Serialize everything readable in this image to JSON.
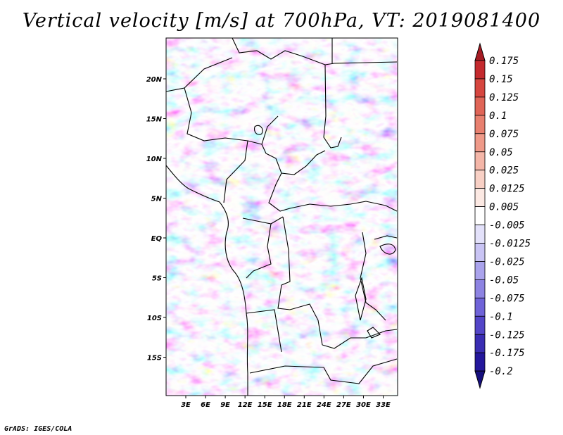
{
  "title": "Vertical velocity [m/s] at 700hPa, VT: 2019081400",
  "credit": "GrADS: IGES/COLA",
  "map": {
    "lat_labels": [
      {
        "label": "20N",
        "lat": 20
      },
      {
        "label": "15N",
        "lat": 15
      },
      {
        "label": "10N",
        "lat": 10
      },
      {
        "label": "5N",
        "lat": 5
      },
      {
        "label": "EQ",
        "lat": 0
      },
      {
        "label": "5S",
        "lat": -5
      },
      {
        "label": "10S",
        "lat": -10
      },
      {
        "label": "15S",
        "lat": -15
      }
    ],
    "lon_labels": [
      {
        "label": "3E",
        "lon": 3
      },
      {
        "label": "6E",
        "lon": 6
      },
      {
        "label": "9E",
        "lon": 9
      },
      {
        "label": "12E",
        "lon": 12
      },
      {
        "label": "15E",
        "lon": 15
      },
      {
        "label": "18E",
        "lon": 18
      },
      {
        "label": "21E",
        "lon": 21
      },
      {
        "label": "24E",
        "lon": 24
      },
      {
        "label": "27E",
        "lon": 27
      },
      {
        "label": "30E",
        "lon": 30
      },
      {
        "label": "33E",
        "lon": 33
      }
    ]
  },
  "colorbar": {
    "labels": [
      "0.175",
      "0.15",
      "0.125",
      "0.1",
      "0.075",
      "0.05",
      "0.025",
      "0.0125",
      "0.005",
      "-0.005",
      "-0.0125",
      "-0.025",
      "-0.05",
      "-0.075",
      "-0.1",
      "-0.125",
      "-0.175",
      "-0.2"
    ],
    "colors": [
      "#a51c24",
      "#c42a2e",
      "#d6463f",
      "#e06557",
      "#e8806f",
      "#ef9a89",
      "#f4b6a8",
      "#f8d0c5",
      "#fce9e3",
      "#ffffff",
      "#e3e1fa",
      "#c9c4f4",
      "#aaa3ec",
      "#8d83e2",
      "#6f63d8",
      "#5345c8",
      "#3a2db3",
      "#24179c",
      "#160f7e"
    ]
  }
}
